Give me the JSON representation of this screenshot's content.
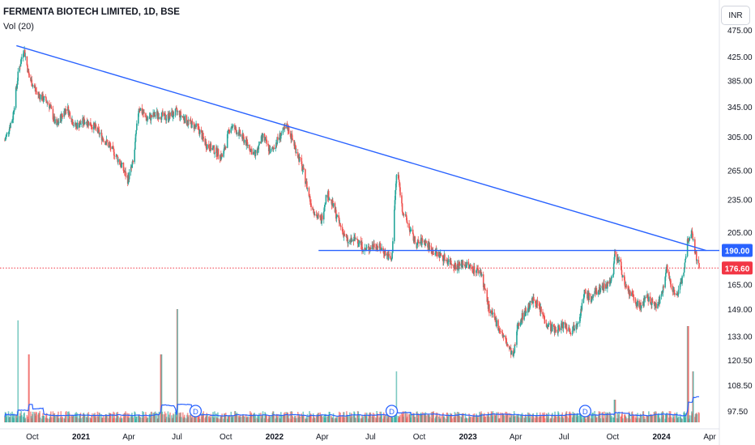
{
  "header": {
    "title": "FERMENTA BIOTECH LIMITED, 1D, BSE",
    "indicator": "Vol (20)",
    "currency": "INR"
  },
  "colors": {
    "up": "#26a69a",
    "down": "#ef5350",
    "trendline": "#2962ff",
    "support": "#2962ff",
    "volume_ma": "#2962ff",
    "last_price_label": "#f23645",
    "support_label": "#2962ff",
    "axis_text": "#131722"
  },
  "chart_data": {
    "type": "candlestick",
    "title": "FERMENTA BIOTECH LIMITED, 1D, BSE",
    "currency": "INR",
    "y_scale": "log",
    "y_ticks": [
      "475.00",
      "425.00",
      "385.00",
      "345.00",
      "305.00",
      "265.00",
      "235.00",
      "205.00",
      "165.00",
      "149.00",
      "133.00",
      "120.50",
      "108.50",
      "97.50"
    ],
    "y_tick_values": [
      475,
      425,
      385,
      345,
      305,
      265,
      235,
      205,
      165,
      149,
      133,
      120.5,
      108.5,
      97.5
    ],
    "x_ticks": [
      "Oct",
      "2021",
      "Apr",
      "Jul",
      "Oct",
      "2022",
      "Apr",
      "Jul",
      "Oct",
      "2023",
      "Apr",
      "Jul",
      "Oct",
      "2024",
      "Apr"
    ],
    "x_tick_dates": [
      "2020-10-01",
      "2021-01-01",
      "2021-04-01",
      "2021-07-01",
      "2021-10-01",
      "2022-01-01",
      "2022-04-01",
      "2022-07-01",
      "2022-10-01",
      "2023-01-01",
      "2023-04-01",
      "2023-07-01",
      "2023-10-01",
      "2024-01-01",
      "2024-04-01"
    ],
    "price_path": [
      {
        "date": "2020-08-10",
        "close": 300
      },
      {
        "date": "2020-08-25",
        "close": 330
      },
      {
        "date": "2020-09-05",
        "close": 400
      },
      {
        "date": "2020-09-15",
        "close": 440
      },
      {
        "date": "2020-09-25",
        "close": 390
      },
      {
        "date": "2020-10-10",
        "close": 365
      },
      {
        "date": "2020-11-01",
        "close": 350
      },
      {
        "date": "2020-11-15",
        "close": 318
      },
      {
        "date": "2020-12-05",
        "close": 345
      },
      {
        "date": "2020-12-20",
        "close": 318
      },
      {
        "date": "2021-01-10",
        "close": 326
      },
      {
        "date": "2021-01-25",
        "close": 318
      },
      {
        "date": "2021-02-15",
        "close": 300
      },
      {
        "date": "2021-03-05",
        "close": 285
      },
      {
        "date": "2021-03-20",
        "close": 268
      },
      {
        "date": "2021-03-30",
        "close": 255
      },
      {
        "date": "2021-04-10",
        "close": 275
      },
      {
        "date": "2021-04-20",
        "close": 345
      },
      {
        "date": "2021-05-05",
        "close": 328
      },
      {
        "date": "2021-05-25",
        "close": 335
      },
      {
        "date": "2021-06-10",
        "close": 330
      },
      {
        "date": "2021-07-01",
        "close": 338
      },
      {
        "date": "2021-07-20",
        "close": 325
      },
      {
        "date": "2021-08-10",
        "close": 315
      },
      {
        "date": "2021-08-25",
        "close": 295
      },
      {
        "date": "2021-09-10",
        "close": 288
      },
      {
        "date": "2021-09-25",
        "close": 280
      },
      {
        "date": "2021-10-10",
        "close": 320
      },
      {
        "date": "2021-10-25",
        "close": 310
      },
      {
        "date": "2021-11-10",
        "close": 296
      },
      {
        "date": "2021-11-25",
        "close": 282
      },
      {
        "date": "2021-12-10",
        "close": 305
      },
      {
        "date": "2021-12-25",
        "close": 285
      },
      {
        "date": "2022-01-10",
        "close": 305
      },
      {
        "date": "2022-01-25",
        "close": 318
      },
      {
        "date": "2022-02-10",
        "close": 290
      },
      {
        "date": "2022-02-25",
        "close": 262
      },
      {
        "date": "2022-03-10",
        "close": 232
      },
      {
        "date": "2022-03-20",
        "close": 220
      },
      {
        "date": "2022-03-30",
        "close": 215
      },
      {
        "date": "2022-04-10",
        "close": 242
      },
      {
        "date": "2022-04-20",
        "close": 230
      },
      {
        "date": "2022-05-05",
        "close": 210
      },
      {
        "date": "2022-05-20",
        "close": 196
      },
      {
        "date": "2022-06-05",
        "close": 200
      },
      {
        "date": "2022-06-20",
        "close": 190
      },
      {
        "date": "2022-07-10",
        "close": 195
      },
      {
        "date": "2022-07-25",
        "close": 190
      },
      {
        "date": "2022-08-10",
        "close": 182
      },
      {
        "date": "2022-08-20",
        "close": 268
      },
      {
        "date": "2022-08-30",
        "close": 225
      },
      {
        "date": "2022-09-15",
        "close": 205
      },
      {
        "date": "2022-09-25",
        "close": 195
      },
      {
        "date": "2022-10-10",
        "close": 198
      },
      {
        "date": "2022-10-25",
        "close": 190
      },
      {
        "date": "2022-11-10",
        "close": 186
      },
      {
        "date": "2022-11-25",
        "close": 182
      },
      {
        "date": "2022-12-10",
        "close": 178
      },
      {
        "date": "2022-12-25",
        "close": 180
      },
      {
        "date": "2023-01-10",
        "close": 176
      },
      {
        "date": "2023-01-25",
        "close": 174
      },
      {
        "date": "2023-02-10",
        "close": 148
      },
      {
        "date": "2023-02-25",
        "close": 140
      },
      {
        "date": "2023-03-10",
        "close": 132
      },
      {
        "date": "2023-03-20",
        "close": 126
      },
      {
        "date": "2023-03-28",
        "close": 122
      },
      {
        "date": "2023-04-05",
        "close": 140
      },
      {
        "date": "2023-04-20",
        "close": 148
      },
      {
        "date": "2023-05-05",
        "close": 155
      },
      {
        "date": "2023-05-15",
        "close": 150
      },
      {
        "date": "2023-05-30",
        "close": 140
      },
      {
        "date": "2023-06-15",
        "close": 136
      },
      {
        "date": "2023-06-30",
        "close": 140
      },
      {
        "date": "2023-07-15",
        "close": 136
      },
      {
        "date": "2023-07-30",
        "close": 144
      },
      {
        "date": "2023-08-10",
        "close": 160
      },
      {
        "date": "2023-08-20",
        "close": 155
      },
      {
        "date": "2023-09-05",
        "close": 162
      },
      {
        "date": "2023-09-20",
        "close": 165
      },
      {
        "date": "2023-10-01",
        "close": 170
      },
      {
        "date": "2023-10-05",
        "close": 188
      },
      {
        "date": "2023-10-15",
        "close": 180
      },
      {
        "date": "2023-10-25",
        "close": 162
      },
      {
        "date": "2023-11-05",
        "close": 158
      },
      {
        "date": "2023-11-20",
        "close": 150
      },
      {
        "date": "2023-12-05",
        "close": 156
      },
      {
        "date": "2023-12-20",
        "close": 151
      },
      {
        "date": "2024-01-01",
        "close": 156
      },
      {
        "date": "2024-01-10",
        "close": 178
      },
      {
        "date": "2024-01-20",
        "close": 163
      },
      {
        "date": "2024-02-01",
        "close": 158
      },
      {
        "date": "2024-02-10",
        "close": 170
      },
      {
        "date": "2024-02-20",
        "close": 200
      },
      {
        "date": "2024-02-28",
        "close": 205
      },
      {
        "date": "2024-03-05",
        "close": 188
      },
      {
        "date": "2024-03-12",
        "close": 176.6
      }
    ],
    "trendline": {
      "start_date": "2020-09-01",
      "start_price": 445,
      "end_date": "2024-03-25",
      "end_price": 190
    },
    "support_level": 190,
    "last_price": 176.6,
    "price_labels": {
      "support": "190.00",
      "last": "176.60"
    },
    "volume_ma_length": 20,
    "dividend_markers": [
      {
        "date": "2021-08-05",
        "label": "D"
      },
      {
        "date": "2022-08-10",
        "label": "D"
      },
      {
        "date": "2023-08-10",
        "label": "D"
      }
    ],
    "volume_spikes": [
      {
        "date": "2020-09-05",
        "height": 0.9
      },
      {
        "date": "2020-09-25",
        "height": 0.6
      },
      {
        "date": "2021-06-01",
        "height": 0.6
      },
      {
        "date": "2021-07-02",
        "height": 1.0
      },
      {
        "date": "2022-08-20",
        "height": 0.45
      },
      {
        "date": "2023-10-05",
        "height": 0.2
      },
      {
        "date": "2024-02-20",
        "height": 0.85
      },
      {
        "date": "2024-03-01",
        "height": 0.45
      }
    ]
  }
}
